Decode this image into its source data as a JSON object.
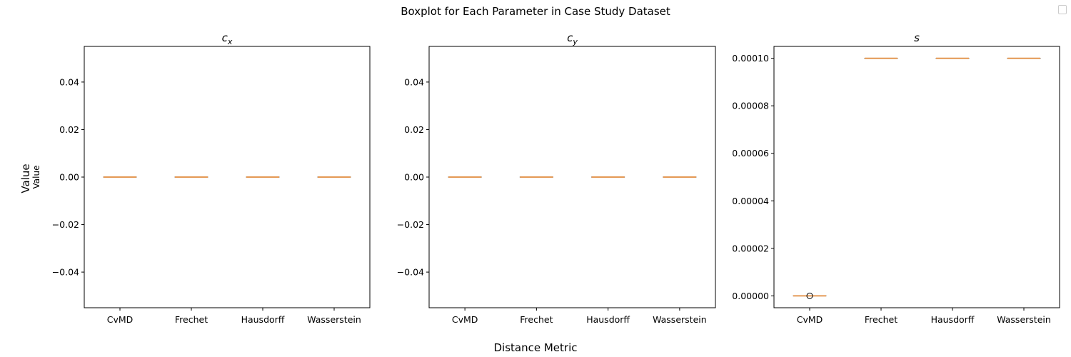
{
  "figure": {
    "suptitle": "Boxplot for Each Parameter in Case Study Dataset",
    "supxlabel": "Distance Metric",
    "supylabel": "Value",
    "first_ylabel": "Value",
    "legend_present": true,
    "colors": {
      "box": "#4a4a4a",
      "median": "#e08a3c",
      "outlier_edge": "#000000"
    }
  },
  "chart_data": [
    {
      "type": "box",
      "title": "c_x",
      "title_main": "c",
      "title_sub": "x",
      "xlabel": "",
      "ylabel": "Value",
      "categories": [
        "CvMD",
        "Frechet",
        "Hausdorff",
        "Wasserstein"
      ],
      "ylim": [
        -0.055,
        0.055
      ],
      "yticks": [
        -0.04,
        -0.02,
        0.0,
        0.02,
        0.04
      ],
      "ytick_labels": [
        "−0.04",
        "−0.02",
        "0.00",
        "0.02",
        "0.04"
      ],
      "boxes": [
        {
          "name": "CvMD",
          "min": 0,
          "q1": 0,
          "median": 0,
          "q3": 0,
          "max": 0,
          "outliers": []
        },
        {
          "name": "Frechet",
          "min": 0,
          "q1": 0,
          "median": 0,
          "q3": 0,
          "max": 0,
          "outliers": []
        },
        {
          "name": "Hausdorff",
          "min": 0,
          "q1": 0,
          "median": 0,
          "q3": 0,
          "max": 0,
          "outliers": []
        },
        {
          "name": "Wasserstein",
          "min": 0,
          "q1": 0,
          "median": 0,
          "q3": 0,
          "max": 0,
          "outliers": []
        }
      ]
    },
    {
      "type": "box",
      "title": "c_y",
      "title_main": "c",
      "title_sub": "y",
      "xlabel": "",
      "ylabel": "",
      "categories": [
        "CvMD",
        "Frechet",
        "Hausdorff",
        "Wasserstein"
      ],
      "ylim": [
        -0.055,
        0.055
      ],
      "yticks": [
        -0.04,
        -0.02,
        0.0,
        0.02,
        0.04
      ],
      "ytick_labels": [
        "−0.04",
        "−0.02",
        "0.00",
        "0.02",
        "0.04"
      ],
      "boxes": [
        {
          "name": "CvMD",
          "min": 0,
          "q1": 0,
          "median": 0,
          "q3": 0,
          "max": 0,
          "outliers": []
        },
        {
          "name": "Frechet",
          "min": 0,
          "q1": 0,
          "median": 0,
          "q3": 0,
          "max": 0,
          "outliers": []
        },
        {
          "name": "Hausdorff",
          "min": 0,
          "q1": 0,
          "median": 0,
          "q3": 0,
          "max": 0,
          "outliers": []
        },
        {
          "name": "Wasserstein",
          "min": 0,
          "q1": 0,
          "median": 0,
          "q3": 0,
          "max": 0,
          "outliers": []
        }
      ]
    },
    {
      "type": "box",
      "title": "s",
      "title_main": "s",
      "title_sub": "",
      "xlabel": "",
      "ylabel": "",
      "categories": [
        "CvMD",
        "Frechet",
        "Hausdorff",
        "Wasserstein"
      ],
      "ylim": [
        -5e-06,
        0.000105
      ],
      "yticks": [
        0.0,
        2e-05,
        4e-05,
        6e-05,
        8e-05,
        0.0001
      ],
      "ytick_labels": [
        "0.00000",
        "0.00002",
        "0.00004",
        "0.00006",
        "0.00008",
        "0.00010"
      ],
      "boxes": [
        {
          "name": "CvMD",
          "min": 0,
          "q1": 0,
          "median": 0,
          "q3": 0,
          "max": 0,
          "outliers": [
            0
          ]
        },
        {
          "name": "Frechet",
          "min": 0.0001,
          "q1": 0.0001,
          "median": 0.0001,
          "q3": 0.0001,
          "max": 0.0001,
          "outliers": []
        },
        {
          "name": "Hausdorff",
          "min": 0.0001,
          "q1": 0.0001,
          "median": 0.0001,
          "q3": 0.0001,
          "max": 0.0001,
          "outliers": []
        },
        {
          "name": "Wasserstein",
          "min": 0.0001,
          "q1": 0.0001,
          "median": 0.0001,
          "q3": 0.0001,
          "max": 0.0001,
          "outliers": []
        }
      ]
    }
  ]
}
